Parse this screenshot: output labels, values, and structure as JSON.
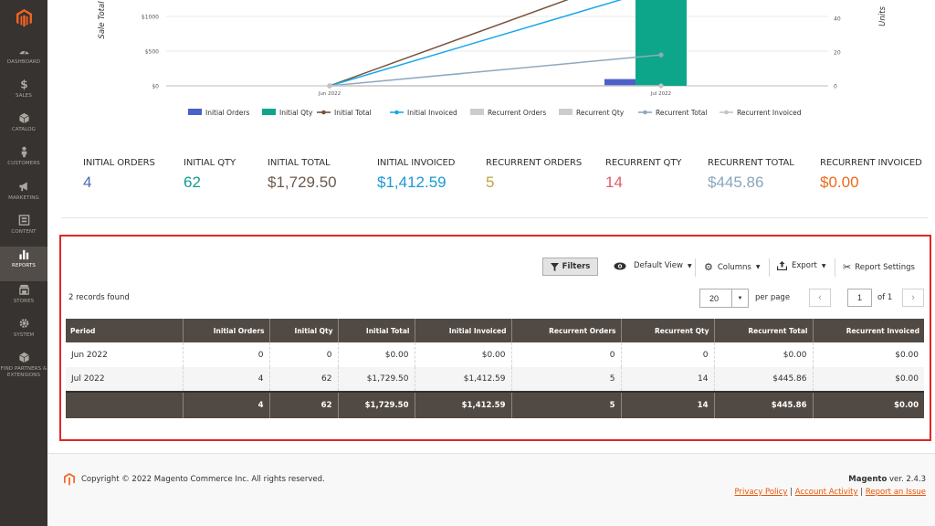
{
  "sidebar": {
    "items": [
      {
        "label": "DASHBOARD"
      },
      {
        "label": "SALES"
      },
      {
        "label": "CATALOG"
      },
      {
        "label": "CUSTOMERS"
      },
      {
        "label": "MARKETING"
      },
      {
        "label": "CONTENT"
      },
      {
        "label": "REPORTS",
        "active": true
      },
      {
        "label": "STORES"
      },
      {
        "label": "SYSTEM"
      },
      {
        "label": "FIND PARTNERS & EXTENSIONS"
      }
    ]
  },
  "chart_data": {
    "type": "bar",
    "ylabel": "Sale Total",
    "y2label": "Units",
    "categories": [
      "Jun 2022",
      "Jul 2022"
    ],
    "y_ticks": [
      "$0",
      "$500",
      "$1000"
    ],
    "y2_ticks": [
      "0",
      "20",
      "40"
    ],
    "series": [
      {
        "name": "Initial Orders",
        "kind": "bar",
        "color": "#4b61c8",
        "values": [
          0,
          4
        ]
      },
      {
        "name": "Initial Qty",
        "kind": "bar",
        "color": "#0ea68b",
        "values": [
          0,
          62
        ]
      },
      {
        "name": "Initial Total",
        "kind": "line",
        "color": "#77533e",
        "values": [
          0,
          1729.5
        ]
      },
      {
        "name": "Initial Invoiced",
        "kind": "line",
        "color": "#1aa8eb",
        "values": [
          0,
          1412.59
        ]
      },
      {
        "name": "Recurrent Orders",
        "kind": "bar",
        "color": "#cccccc",
        "values": [
          0,
          5
        ]
      },
      {
        "name": "Recurrent Qty",
        "kind": "bar",
        "color": "#cccccc",
        "values": [
          0,
          14
        ]
      },
      {
        "name": "Recurrent Total",
        "kind": "line",
        "color": "#8da9bf",
        "values": [
          0,
          445.86
        ]
      },
      {
        "name": "Recurrent Invoiced",
        "kind": "line",
        "color": "#c4c4c4",
        "values": [
          0,
          0
        ]
      }
    ]
  },
  "kpis": [
    {
      "label": "INITIAL ORDERS",
      "value": "4",
      "color": "#4c6bae"
    },
    {
      "label": "INITIAL QTY",
      "value": "62",
      "color": "#139b8e"
    },
    {
      "label": "INITIAL TOTAL",
      "value": "$1,729.50",
      "color": "#6b5a4e"
    },
    {
      "label": "INITIAL INVOICED",
      "value": "$1,412.59",
      "color": "#1a99d6"
    },
    {
      "label": "RECURRENT ORDERS",
      "value": "5",
      "color": "#c5a33a"
    },
    {
      "label": "RECURRENT QTY",
      "value": "14",
      "color": "#e25b6d"
    },
    {
      "label": "RECURRENT TOTAL",
      "value": "$445.86",
      "color": "#8aa6bd"
    },
    {
      "label": "RECURRENT INVOICED",
      "value": "$0.00",
      "color": "#eb6a1c"
    }
  ],
  "toolbar": {
    "filters": "Filters",
    "view": "Default View",
    "columns": "Columns",
    "export": "Export",
    "settings": "Report Settings"
  },
  "records_found": "2 records found",
  "pager": {
    "per_page_value": "20",
    "per_page_label": "per page",
    "page": "1",
    "of": "of 1"
  },
  "table": {
    "headers": [
      "Period",
      "Initial Orders",
      "Initial Qty",
      "Initial Total",
      "Initial Invoiced",
      "Recurrent Orders",
      "Recurrent Qty",
      "Recurrent Total",
      "Recurrent Invoiced"
    ],
    "rows": [
      [
        "Jun 2022",
        "0",
        "0",
        "$0.00",
        "$0.00",
        "0",
        "0",
        "$0.00",
        "$0.00"
      ],
      [
        "Jul 2022",
        "4",
        "62",
        "$1,729.50",
        "$1,412.59",
        "5",
        "14",
        "$445.86",
        "$0.00"
      ]
    ],
    "totals": [
      "",
      "4",
      "62",
      "$1,729.50",
      "$1,412.59",
      "5",
      "14",
      "$445.86",
      "$0.00"
    ]
  },
  "footer": {
    "copyright": "Copyright © 2022 Magento Commerce Inc. All rights reserved.",
    "brand": "Magento",
    "version": "ver. 2.4.3",
    "links": [
      "Privacy Policy",
      "Account Activity",
      "Report an Issue"
    ],
    "separator": "|"
  }
}
